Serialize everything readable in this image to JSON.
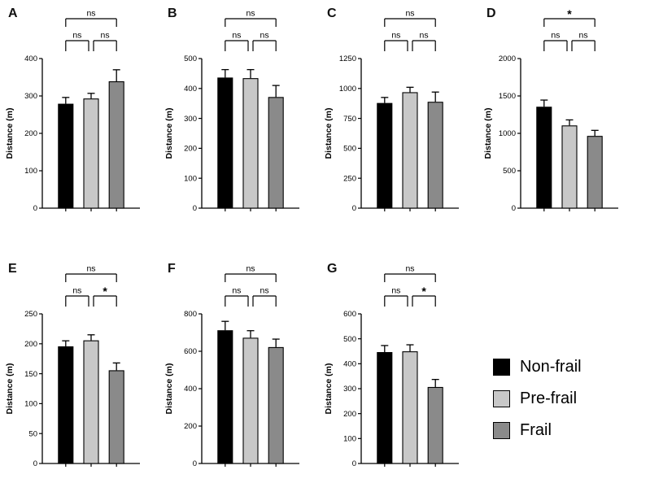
{
  "figure": {
    "background": "#ffffff"
  },
  "legend": {
    "items": [
      {
        "label": "Non-frail",
        "color": "#000000"
      },
      {
        "label": "Pre-frail",
        "color": "#c8c8c8"
      },
      {
        "label": "Frail",
        "color": "#8a8a8a"
      }
    ]
  },
  "chart_data": [
    {
      "type": "bar",
      "panel": "A",
      "ylabel": "Distance (m)",
      "ylim": [
        0,
        400
      ],
      "yticks": [
        0,
        100,
        200,
        300,
        400
      ],
      "categories": [
        "Non-frail",
        "Pre-frail",
        "Frail"
      ],
      "values": [
        278,
        292,
        338
      ],
      "errors": [
        18,
        15,
        32
      ],
      "significance": [
        {
          "from": 0,
          "to": 1,
          "label": "ns"
        },
        {
          "from": 1,
          "to": 2,
          "label": "ns"
        },
        {
          "from": 0,
          "to": 2,
          "label": "ns"
        }
      ]
    },
    {
      "type": "bar",
      "panel": "B",
      "ylabel": "Distance (m)",
      "ylim": [
        0,
        500
      ],
      "yticks": [
        0,
        100,
        200,
        300,
        400,
        500
      ],
      "categories": [
        "Non-frail",
        "Pre-frail",
        "Frail"
      ],
      "values": [
        435,
        433,
        370
      ],
      "errors": [
        28,
        30,
        40
      ],
      "significance": [
        {
          "from": 0,
          "to": 1,
          "label": "ns"
        },
        {
          "from": 1,
          "to": 2,
          "label": "ns"
        },
        {
          "from": 0,
          "to": 2,
          "label": "ns"
        }
      ]
    },
    {
      "type": "bar",
      "panel": "C",
      "ylabel": "Distance (m)",
      "ylim": [
        0,
        1250
      ],
      "yticks": [
        0,
        250,
        500,
        750,
        1000,
        1250
      ],
      "categories": [
        "Non-frail",
        "Pre-frail",
        "Frail"
      ],
      "values": [
        875,
        965,
        885
      ],
      "errors": [
        50,
        45,
        85
      ],
      "significance": [
        {
          "from": 0,
          "to": 1,
          "label": "ns"
        },
        {
          "from": 1,
          "to": 2,
          "label": "ns"
        },
        {
          "from": 0,
          "to": 2,
          "label": "ns"
        }
      ]
    },
    {
      "type": "bar",
      "panel": "D",
      "ylabel": "Distance (m)",
      "ylim": [
        0,
        2000
      ],
      "yticks": [
        0,
        500,
        1000,
        1500,
        2000
      ],
      "categories": [
        "Non-frail",
        "Pre-frail",
        "Frail"
      ],
      "values": [
        1350,
        1100,
        960
      ],
      "errors": [
        95,
        80,
        80
      ],
      "significance": [
        {
          "from": 0,
          "to": 1,
          "label": "ns"
        },
        {
          "from": 1,
          "to": 2,
          "label": "ns"
        },
        {
          "from": 0,
          "to": 2,
          "label": "*"
        }
      ]
    },
    {
      "type": "bar",
      "panel": "E",
      "ylabel": "Distance (m)",
      "ylim": [
        0,
        250
      ],
      "yticks": [
        0,
        50,
        100,
        150,
        200,
        250
      ],
      "categories": [
        "Non-frail",
        "Pre-frail",
        "Frail"
      ],
      "values": [
        195,
        205,
        155
      ],
      "errors": [
        10,
        10,
        13
      ],
      "significance": [
        {
          "from": 0,
          "to": 1,
          "label": "ns"
        },
        {
          "from": 1,
          "to": 2,
          "label": "*"
        },
        {
          "from": 0,
          "to": 2,
          "label": "ns"
        }
      ]
    },
    {
      "type": "bar",
      "panel": "F",
      "ylabel": "Distance (m)",
      "ylim": [
        0,
        800
      ],
      "yticks": [
        0,
        200,
        400,
        600,
        800
      ],
      "categories": [
        "Non-frail",
        "Pre-frail",
        "Frail"
      ],
      "values": [
        710,
        670,
        620
      ],
      "errors": [
        50,
        40,
        45
      ],
      "significance": [
        {
          "from": 0,
          "to": 1,
          "label": "ns"
        },
        {
          "from": 1,
          "to": 2,
          "label": "ns"
        },
        {
          "from": 0,
          "to": 2,
          "label": "ns"
        }
      ]
    },
    {
      "type": "bar",
      "panel": "G",
      "ylabel": "Distance (m)",
      "ylim": [
        0,
        600
      ],
      "yticks": [
        0,
        100,
        200,
        300,
        400,
        500,
        600
      ],
      "categories": [
        "Non-frail",
        "Pre-frail",
        "Frail"
      ],
      "values": [
        445,
        448,
        305
      ],
      "errors": [
        28,
        28,
        32
      ],
      "significance": [
        {
          "from": 0,
          "to": 1,
          "label": "ns"
        },
        {
          "from": 1,
          "to": 2,
          "label": "*"
        },
        {
          "from": 0,
          "to": 2,
          "label": "ns"
        }
      ]
    }
  ]
}
